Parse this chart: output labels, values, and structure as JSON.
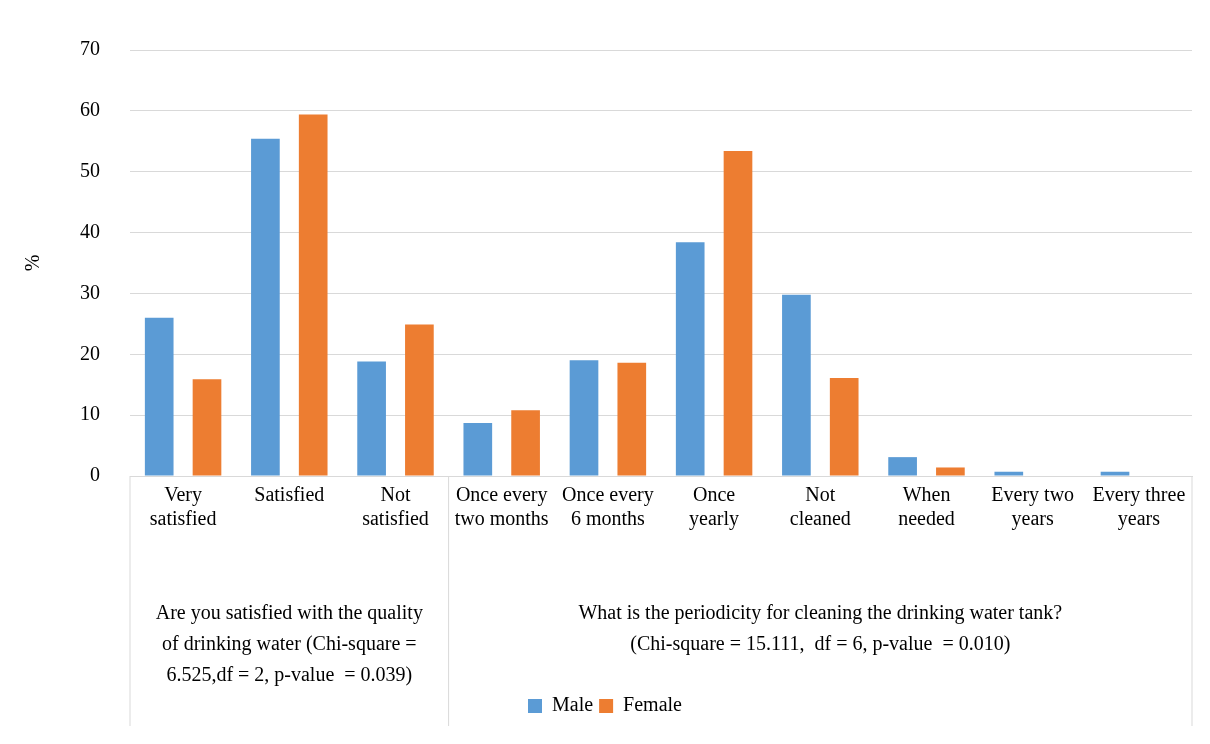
{
  "chart_data": {
    "type": "bar",
    "ylabel": "%",
    "categories": [
      "Very satisfied",
      "Satisfied",
      "Not satisfied",
      "Once every two months",
      "Once every 6 months",
      "Once yearly",
      "Not cleaned",
      "When needed",
      "Every two years",
      "Every three years"
    ],
    "series": [
      {
        "name": "Male",
        "color": "#5b9bd5",
        "values": [
          26.0,
          55.4,
          18.8,
          8.7,
          19.0,
          38.4,
          29.8,
          3.1,
          0.7,
          0.7
        ]
      },
      {
        "name": "Female",
        "color": "#ed7d31",
        "values": [
          15.9,
          59.4,
          24.9,
          10.8,
          18.6,
          53.4,
          16.1,
          1.4,
          0,
          0
        ]
      }
    ],
    "ylim": [
      0,
      70
    ],
    "yticks": [
      0,
      10,
      20,
      30,
      40,
      50,
      60,
      70
    ],
    "grid": "y",
    "legend": "bottom",
    "annotations": [
      "Are you satisfied with the quality of drinking water (Chi-square = 6.525,df = 2, p-value  = 0.039)",
      "What is the periodicity for cleaning the drinking water tank? (Chi-square = 15.111,  df = 6, p-value  = 0.010)"
    ]
  }
}
